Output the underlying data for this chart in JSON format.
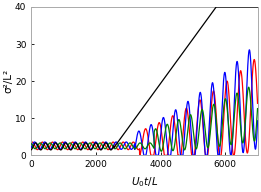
{
  "title": "",
  "xlabel": "U$_0$t/L",
  "ylabel": "σ²/L²",
  "xlim": [
    0,
    7000
  ],
  "ylim": [
    0,
    40
  ],
  "xticks": [
    0,
    2000,
    4000,
    6000
  ],
  "yticks": [
    0,
    10,
    20,
    30,
    40
  ],
  "colors": [
    "black",
    "blue",
    "red",
    "green"
  ],
  "linewidth": 0.9,
  "figsize": [
    2.61,
    1.92
  ],
  "dpi": 100,
  "bg_color": "#f0f0f0",
  "spine_color": "#aaaaaa"
}
